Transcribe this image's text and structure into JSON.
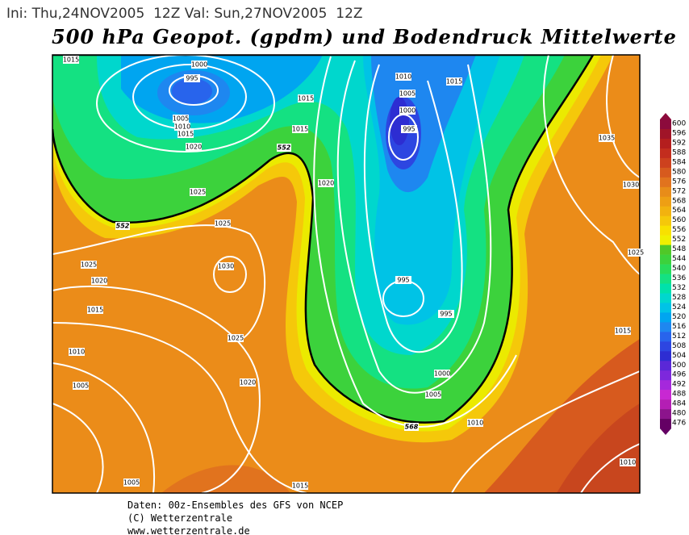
{
  "header": {
    "run_info": "Ini: Thu,24NOV2005  12Z Val: Sun,27NOV2005  12Z",
    "title": "500 hPa Geopot. (gpdm) und Bodendruck Mittelwerte"
  },
  "colorbar": {
    "labels": [
      600,
      596,
      592,
      588,
      584,
      580,
      576,
      572,
      568,
      564,
      560,
      556,
      552,
      548,
      544,
      540,
      536,
      532,
      528,
      524,
      520,
      516,
      512,
      508,
      504,
      500,
      496,
      492,
      488,
      484,
      480,
      476
    ],
    "colors": [
      "#8c0a3c",
      "#a01428",
      "#b41e1e",
      "#c32d1e",
      "#cd411e",
      "#d75a1e",
      "#e1731e",
      "#e88c19",
      "#ee9f14",
      "#f2b20f",
      "#f5c80a",
      "#f8e100",
      "#f0f000",
      "#50c828",
      "#3cd23c",
      "#28dc5a",
      "#14e182",
      "#00e1aa",
      "#00d7cd",
      "#00c3e6",
      "#00a5f0",
      "#1e87f0",
      "#2864ec",
      "#2d46e1",
      "#2d2dd2",
      "#5a28d7",
      "#7d28dc",
      "#a528dc",
      "#c828d2",
      "#b41eb4",
      "#8c148c",
      "#640064"
    ]
  },
  "contour_labels": [
    "552",
    "552",
    "568"
  ],
  "isobar_labels": [
    "1015",
    "1000",
    "995",
    "1005",
    "1010",
    "1015",
    "1020",
    "1025",
    "1015",
    "1015",
    "1020",
    "1010",
    "1005",
    "1000",
    "995",
    "1015",
    "1035",
    "1030",
    "1025",
    "1025",
    "1030",
    "1025",
    "1020",
    "1015",
    "1025",
    "1010",
    "1020",
    "1005",
    "995",
    "995",
    "1000",
    "1005",
    "1010",
    "1015",
    "1010",
    "1005",
    "1015"
  ],
  "footer": [
    "Daten: 00z-Ensembles des GFS von NCEP",
    "(C) Wetterzentrale",
    "www.wetterzentrale.de"
  ]
}
